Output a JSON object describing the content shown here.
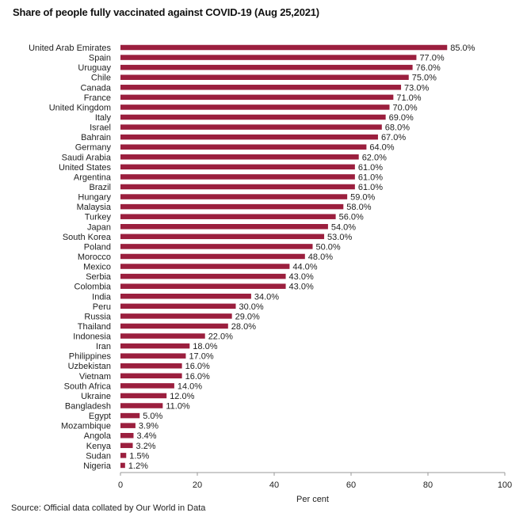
{
  "title": "Share of people fully vaccinated against COVID-19 (Aug 25,2021)",
  "source": "Source: Official data collated by Our World in Data",
  "colors": {
    "bar": "#9b1f3e",
    "axis": "#999999",
    "text": "#222222"
  },
  "chart_data": {
    "type": "bar",
    "orientation": "horizontal",
    "title": "Share of people fully vaccinated against COVID-19 (Aug 25,2021)",
    "xlabel": "Per cent",
    "ylabel": "",
    "xlim": [
      0,
      100
    ],
    "xticks": [
      0,
      20,
      40,
      60,
      80,
      100
    ],
    "grid": false,
    "value_format": "one decimal with %",
    "categories": [
      "United Arab Emirates",
      "Spain",
      "Uruguay",
      "Chile",
      "Canada",
      "France",
      "United Kingdom",
      "Italy",
      "Israel",
      "Bahrain",
      "Germany",
      "Saudi Arabia",
      "United States",
      "Argentina",
      "Brazil",
      "Hungary",
      "Malaysia",
      "Turkey",
      "Japan",
      "South Korea",
      "Poland",
      "Morocco",
      "Mexico",
      "Serbia",
      "Colombia",
      "India",
      "Peru",
      "Russia",
      "Thailand",
      "Indonesia",
      "Iran",
      "Philippines",
      "Uzbekistan",
      "Vietnam",
      "South Africa",
      "Ukraine",
      "Bangladesh",
      "Egypt",
      "Mozambique",
      "Angola",
      "Kenya",
      "Sudan",
      "Nigeria"
    ],
    "values": [
      85.0,
      77.0,
      76.0,
      75.0,
      73.0,
      71.0,
      70.0,
      69.0,
      68.0,
      67.0,
      64.0,
      62.0,
      61.0,
      61.0,
      61.0,
      59.0,
      58.0,
      56.0,
      54.0,
      53.0,
      50.0,
      48.0,
      44.0,
      43.0,
      43.0,
      34.0,
      30.0,
      29.0,
      28.0,
      22.0,
      18.0,
      17.0,
      16.0,
      16.0,
      14.0,
      12.0,
      11.0,
      5.0,
      3.9,
      3.4,
      3.2,
      1.5,
      1.2
    ],
    "value_labels": [
      "85.0%",
      "77.0%",
      "76.0%",
      "75.0%",
      "73.0%",
      "71.0%",
      "70.0%",
      "69.0%",
      "68.0%",
      "67.0%",
      "64.0%",
      "62.0%",
      "61.0%",
      "61.0%",
      "61.0%",
      "59.0%",
      "58.0%",
      "56.0%",
      "54.0%",
      "53.0%",
      "50.0%",
      "48.0%",
      "44.0%",
      "43.0%",
      "43.0%",
      "34.0%",
      "30.0%",
      "29.0%",
      "28.0%",
      "22.0%",
      "18.0%",
      "17.0%",
      "16.0%",
      "16.0%",
      "14.0%",
      "12.0%",
      "11.0%",
      "5.0%",
      "3.9%",
      "3.4%",
      "3.2%",
      "1.5%",
      "1.2%"
    ]
  }
}
